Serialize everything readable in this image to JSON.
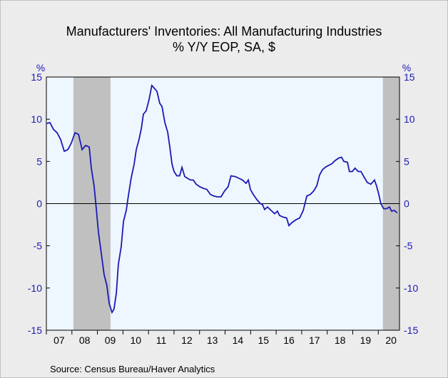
{
  "chart_data": {
    "type": "line",
    "title": "Manufacturers' Inventories: All Manufacturing Industries",
    "subtitle": "% Y/Y   EOP, SA, $",
    "y_label": "%",
    "y2_label": "%",
    "source": "Source:  Census Bureau/Haver Analytics",
    "xlim": [
      2007,
      2020.83
    ],
    "xticks": [
      {
        "value": 2007,
        "label": "07"
      },
      {
        "value": 2008,
        "label": "08"
      },
      {
        "value": 2009,
        "label": "09"
      },
      {
        "value": 2010,
        "label": "10"
      },
      {
        "value": 2011,
        "label": "11"
      },
      {
        "value": 2012,
        "label": "12"
      },
      {
        "value": 2013,
        "label": "13"
      },
      {
        "value": 2014,
        "label": "14"
      },
      {
        "value": 2015,
        "label": "15"
      },
      {
        "value": 2016,
        "label": "16"
      },
      {
        "value": 2017,
        "label": "17"
      },
      {
        "value": 2018,
        "label": "18"
      },
      {
        "value": 2019,
        "label": "19"
      },
      {
        "value": 2020,
        "label": "20"
      }
    ],
    "ylim": [
      -15,
      15
    ],
    "yticks": [
      -15,
      -10,
      -5,
      0,
      5,
      10,
      15
    ],
    "y2lim": [
      -15,
      15
    ],
    "y2ticks": [
      -15,
      -10,
      -5,
      0,
      5,
      10,
      15
    ],
    "zero_line": true,
    "shaded_periods": [
      [
        2008.06,
        2009.51
      ],
      [
        2020.18,
        2020.83
      ]
    ],
    "shade_color": "#c0c0c0",
    "x": [
      2007.0,
      2007.14,
      2007.28,
      2007.42,
      2007.56,
      2007.7,
      2007.84,
      2007.98,
      2008.12,
      2008.26,
      2008.4,
      2008.54,
      2008.68,
      2008.76,
      2008.87,
      2008.96,
      2009.04,
      2009.15,
      2009.26,
      2009.37,
      2009.46,
      2009.57,
      2009.65,
      2009.74,
      2009.82,
      2009.93,
      2010.02,
      2010.13,
      2010.21,
      2010.32,
      2010.44,
      2010.52,
      2010.63,
      2010.72,
      2010.8,
      2010.91,
      2011.02,
      2011.13,
      2011.25,
      2011.33,
      2011.44,
      2011.53,
      2011.64,
      2011.75,
      2011.83,
      2011.92,
      2012.0,
      2012.11,
      2012.22,
      2012.31,
      2012.42,
      2012.53,
      2012.64,
      2012.75,
      2012.87,
      2013.01,
      2013.15,
      2013.28,
      2013.42,
      2013.56,
      2013.7,
      2013.84,
      2013.98,
      2014.12,
      2014.23,
      2014.4,
      2014.54,
      2014.68,
      2014.82,
      2014.91,
      2014.99,
      2015.1,
      2015.24,
      2015.38,
      2015.46,
      2015.55,
      2015.66,
      2015.8,
      2015.94,
      2016.05,
      2016.13,
      2016.27,
      2016.41,
      2016.5,
      2016.64,
      2016.78,
      2016.92,
      2017.06,
      2017.2,
      2017.34,
      2017.47,
      2017.59,
      2017.7,
      2017.81,
      2017.92,
      2018.03,
      2018.17,
      2018.31,
      2018.45,
      2018.56,
      2018.65,
      2018.79,
      2018.87,
      2018.98,
      2019.09,
      2019.21,
      2019.32,
      2019.43,
      2019.57,
      2019.71,
      2019.85,
      2019.93,
      2020.02,
      2020.1,
      2020.21,
      2020.32,
      2020.44,
      2020.52,
      2020.63,
      2020.74
    ],
    "series": [
      {
        "name": "Inventories % Y/Y",
        "color": "#1a1ab4",
        "values": [
          9.5,
          9.6,
          8.8,
          8.4,
          7.6,
          6.2,
          6.4,
          7.2,
          8.4,
          8.2,
          6.4,
          6.9,
          6.7,
          4.2,
          2.1,
          -0.8,
          -3.4,
          -5.9,
          -8.4,
          -9.7,
          -11.8,
          -12.9,
          -12.5,
          -10.6,
          -7.2,
          -5.1,
          -2.1,
          -0.8,
          0.9,
          3.0,
          4.7,
          6.4,
          7.6,
          8.9,
          10.6,
          11.0,
          12.3,
          14.0,
          13.6,
          13.3,
          11.9,
          11.5,
          9.6,
          8.5,
          6.8,
          4.7,
          3.8,
          3.3,
          3.3,
          4.3,
          3.2,
          3.0,
          2.8,
          2.8,
          2.3,
          2.0,
          1.8,
          1.7,
          1.1,
          0.9,
          0.8,
          0.8,
          1.5,
          2.0,
          3.3,
          3.2,
          3.0,
          2.8,
          2.4,
          2.8,
          1.7,
          1.1,
          0.5,
          0.0,
          -0.1,
          -0.7,
          -0.4,
          -0.8,
          -1.2,
          -0.9,
          -1.4,
          -1.6,
          -1.7,
          -2.6,
          -2.2,
          -1.9,
          -1.7,
          -0.8,
          0.9,
          1.1,
          1.5,
          2.1,
          3.4,
          4.0,
          4.3,
          4.5,
          4.7,
          5.1,
          5.4,
          5.5,
          5.0,
          4.9,
          3.8,
          3.8,
          4.2,
          3.8,
          3.8,
          3.2,
          2.5,
          2.3,
          2.8,
          2.1,
          1.1,
          0.0,
          -0.6,
          -0.6,
          -0.4,
          -0.9,
          -0.8,
          -1.1
        ]
      }
    ]
  }
}
